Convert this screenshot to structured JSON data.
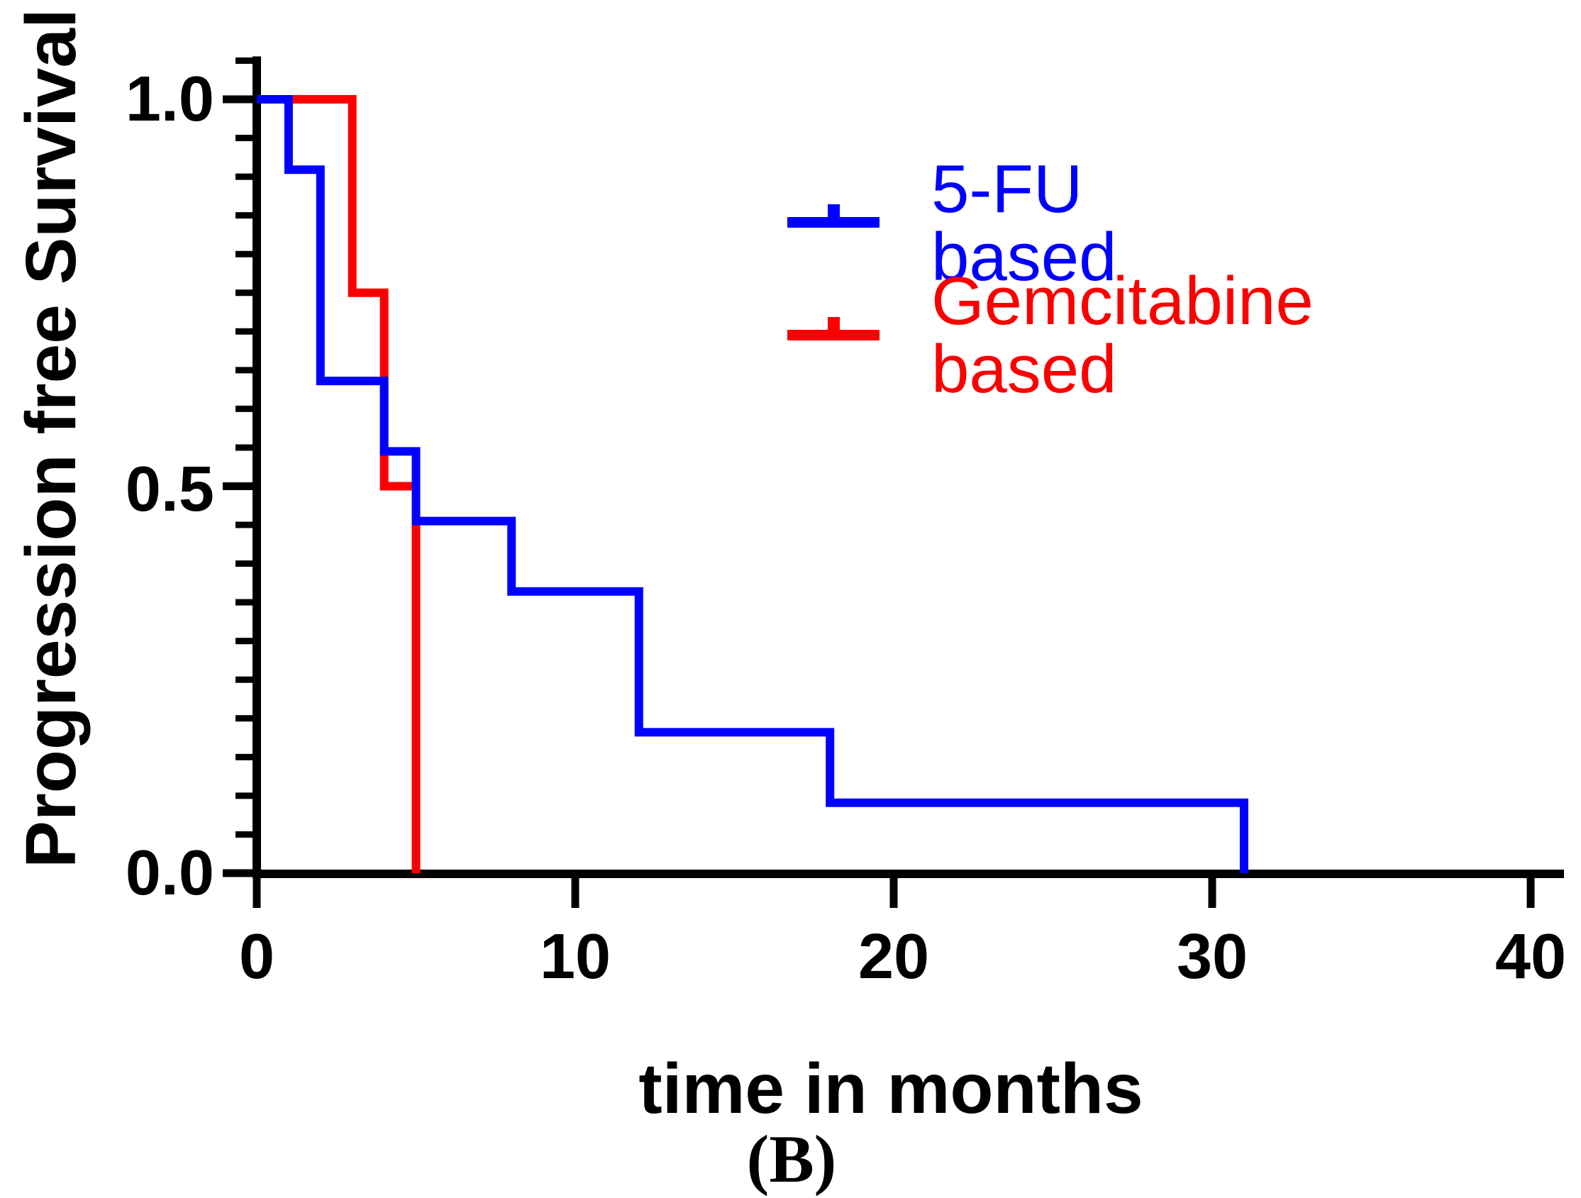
{
  "figure": {
    "caption": "(B)",
    "background_color": "#ffffff",
    "axis_color": "#000000"
  },
  "chart_data": {
    "type": "line",
    "subtype": "kaplan-meier-step-curve",
    "title": "",
    "xlabel": "time in months",
    "ylabel": "Progression free Survival",
    "xlim": [
      0,
      40
    ],
    "ylim": [
      0.0,
      1.05
    ],
    "x_ticks": [
      0,
      10,
      20,
      30,
      40
    ],
    "x_tick_labels": [
      "0",
      "10",
      "20",
      "30",
      "40"
    ],
    "y_ticks": [
      1.0,
      0.5,
      0.0
    ],
    "y_tick_labels": [
      "1.0",
      "0.5",
      "0.0"
    ],
    "y_minor_tick_step": 0.05,
    "grid": false,
    "legend_position": "inside-upper-right",
    "series": [
      {
        "name": "Gemcitabine based",
        "color": "#FB0000",
        "points": [
          [
            0,
            1.0
          ],
          [
            3,
            1.0
          ],
          [
            3,
            0.75
          ],
          [
            4,
            0.75
          ],
          [
            4,
            0.5
          ],
          [
            5,
            0.5
          ],
          [
            5,
            0.0
          ]
        ]
      },
      {
        "name": "5-FU based",
        "color": "#0000FE",
        "points": [
          [
            0,
            1.0
          ],
          [
            1,
            1.0
          ],
          [
            1,
            0.909
          ],
          [
            2,
            0.909
          ],
          [
            2,
            0.636
          ],
          [
            4,
            0.636
          ],
          [
            4,
            0.545
          ],
          [
            5,
            0.545
          ],
          [
            5,
            0.455
          ],
          [
            8,
            0.455
          ],
          [
            8,
            0.364
          ],
          [
            12,
            0.364
          ],
          [
            12,
            0.182
          ],
          [
            18,
            0.182
          ],
          [
            18,
            0.091
          ],
          [
            31,
            0.091
          ],
          [
            31,
            0.0
          ]
        ]
      }
    ]
  }
}
